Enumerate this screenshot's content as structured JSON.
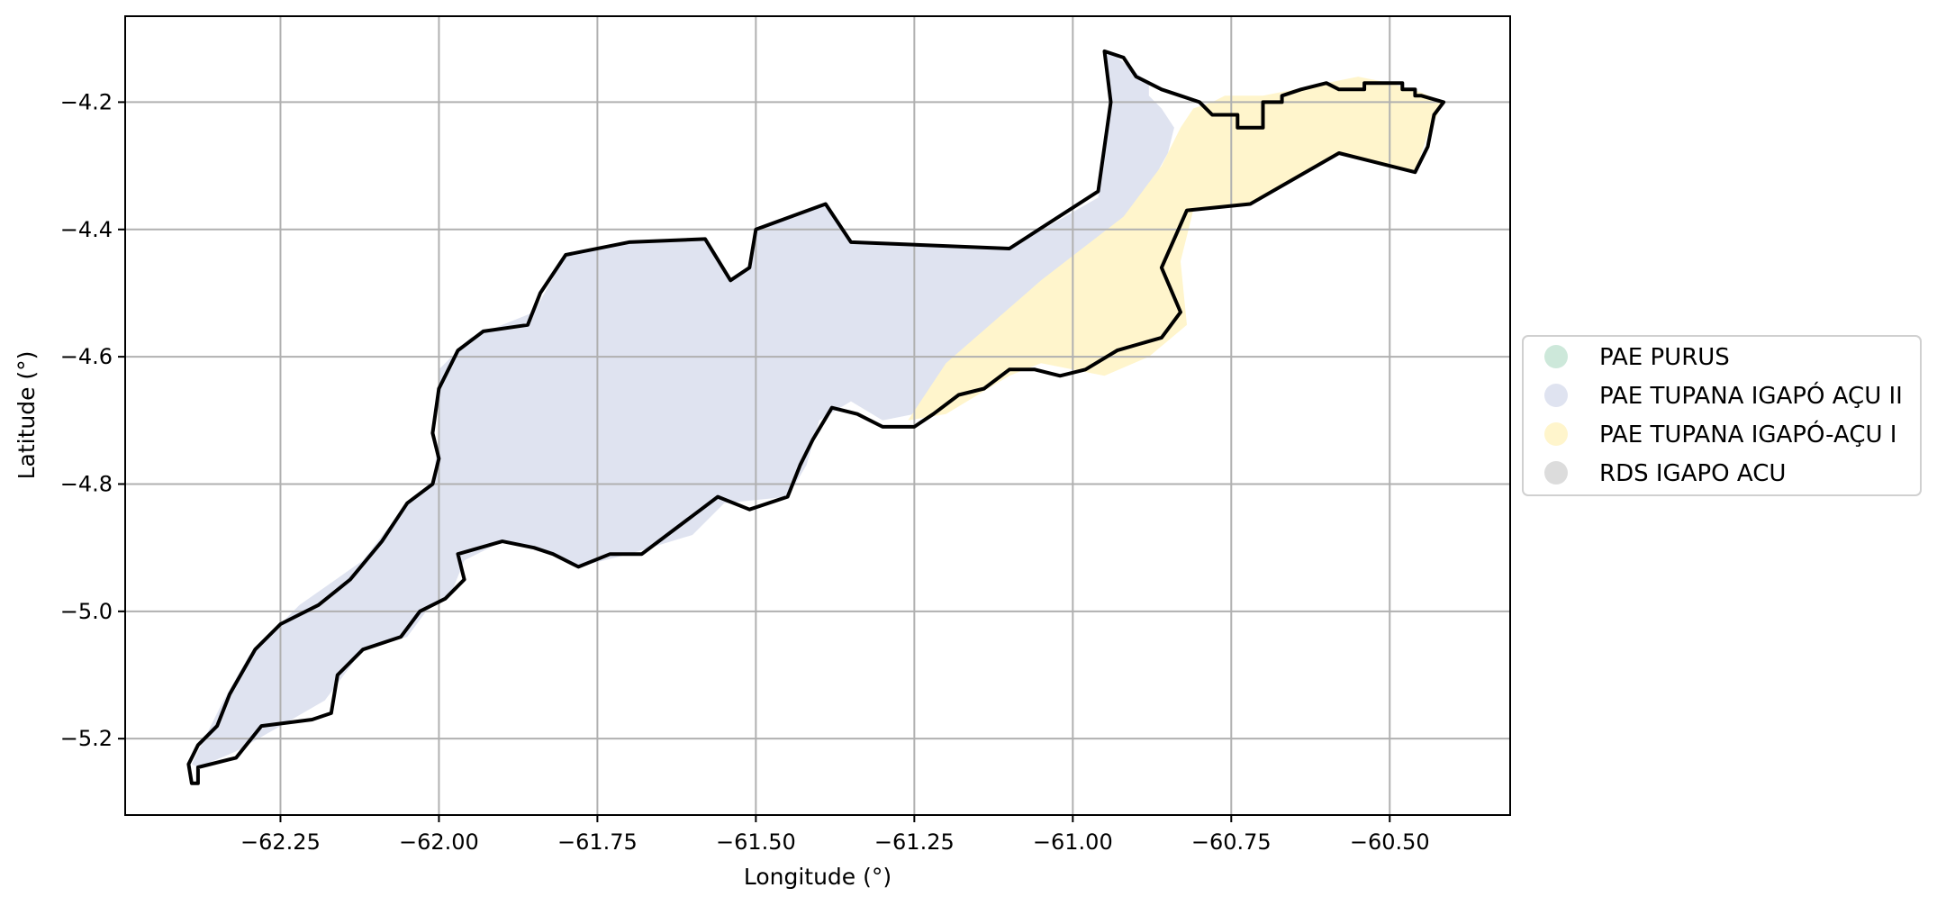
{
  "figure": {
    "xlabel": "Longitude (°)",
    "ylabel": "Latitude (°)"
  },
  "axes": {
    "x_ticks": [
      {
        "value": -62.25,
        "label": "−62.25"
      },
      {
        "value": -62.0,
        "label": "−62.00"
      },
      {
        "value": -61.75,
        "label": "−61.75"
      },
      {
        "value": -61.5,
        "label": "−61.50"
      },
      {
        "value": -61.25,
        "label": "−61.25"
      },
      {
        "value": -61.0,
        "label": "−61.00"
      },
      {
        "value": -60.75,
        "label": "−60.75"
      },
      {
        "value": -60.5,
        "label": "−60.50"
      }
    ],
    "y_ticks": [
      {
        "value": -4.2,
        "label": "−4.2"
      },
      {
        "value": -4.4,
        "label": "−4.4"
      },
      {
        "value": -4.6,
        "label": "−4.6"
      },
      {
        "value": -4.8,
        "label": "−4.8"
      },
      {
        "value": -5.0,
        "label": "−5.0"
      },
      {
        "value": -5.2,
        "label": "−5.2"
      }
    ],
    "xlim": [
      -62.495,
      -60.31
    ],
    "ylim": [
      -5.32,
      -4.065
    ],
    "grid": true
  },
  "legend": {
    "placement": "center-right, outside axes",
    "entries": [
      {
        "label": "PAE PURUS",
        "color": "#cde8da"
      },
      {
        "label": "PAE TUPANA IGAPÓ AÇU II",
        "color": "#dfe3f0"
      },
      {
        "label": "PAE TUPANA IGAPÓ-AÇU I",
        "color": "#fff5cc"
      },
      {
        "label": "RDS IGAPO ACU",
        "color": "#dcdcdc"
      }
    ]
  },
  "map_data": {
    "type": "choropleth",
    "outline_color": "#000000",
    "regions": [
      {
        "name": "PAE TUPANA IGAPÓ AÇU II",
        "color": "#dfe3f0",
        "polygon": [
          [
            -62.38,
            -5.245
          ],
          [
            -62.32,
            -5.22
          ],
          [
            -62.25,
            -5.18
          ],
          [
            -62.18,
            -5.14
          ],
          [
            -62.12,
            -5.06
          ],
          [
            -62.05,
            -5.04
          ],
          [
            -62.02,
            -5.0
          ],
          [
            -61.98,
            -4.97
          ],
          [
            -61.96,
            -4.92
          ],
          [
            -61.9,
            -4.89
          ],
          [
            -61.85,
            -4.9
          ],
          [
            -61.78,
            -4.93
          ],
          [
            -61.7,
            -4.91
          ],
          [
            -61.6,
            -4.88
          ],
          [
            -61.55,
            -4.83
          ],
          [
            -61.45,
            -4.82
          ],
          [
            -61.42,
            -4.77
          ],
          [
            -61.4,
            -4.7
          ],
          [
            -61.35,
            -4.67
          ],
          [
            -61.3,
            -4.7
          ],
          [
            -61.25,
            -4.69
          ],
          [
            -61.2,
            -4.62
          ],
          [
            -61.1,
            -4.57
          ],
          [
            -60.98,
            -4.47
          ],
          [
            -60.9,
            -4.37
          ],
          [
            -60.85,
            -4.28
          ],
          [
            -60.84,
            -4.24
          ],
          [
            -60.86,
            -4.21
          ],
          [
            -60.88,
            -4.19
          ],
          [
            -60.88,
            -4.17
          ],
          [
            -60.93,
            -4.13
          ],
          [
            -60.95,
            -4.12
          ],
          [
            -60.94,
            -4.2
          ],
          [
            -60.96,
            -4.35
          ],
          [
            -61.1,
            -4.43
          ],
          [
            -61.35,
            -4.42
          ],
          [
            -61.39,
            -4.36
          ],
          [
            -61.5,
            -4.4
          ],
          [
            -61.51,
            -4.46
          ],
          [
            -61.54,
            -4.48
          ],
          [
            -61.58,
            -4.415
          ],
          [
            -61.7,
            -4.42
          ],
          [
            -61.8,
            -4.44
          ],
          [
            -61.85,
            -4.53
          ],
          [
            -61.95,
            -4.57
          ],
          [
            -62.0,
            -4.62
          ],
          [
            -62.0,
            -4.72
          ],
          [
            -62.01,
            -4.8
          ],
          [
            -62.05,
            -4.83
          ],
          [
            -62.12,
            -4.92
          ],
          [
            -62.22,
            -4.99
          ],
          [
            -62.3,
            -5.07
          ],
          [
            -62.34,
            -5.14
          ],
          [
            -62.39,
            -5.24
          ]
        ]
      },
      {
        "name": "PAE TUPANA IGAPÓ-AÇU I",
        "color": "#fff5cc",
        "polygon": [
          [
            -61.26,
            -4.7
          ],
          [
            -61.2,
            -4.61
          ],
          [
            -61.05,
            -4.48
          ],
          [
            -60.92,
            -4.38
          ],
          [
            -60.86,
            -4.3
          ],
          [
            -60.83,
            -4.24
          ],
          [
            -60.81,
            -4.21
          ],
          [
            -60.78,
            -4.2
          ],
          [
            -60.76,
            -4.19
          ],
          [
            -60.7,
            -4.19
          ],
          [
            -60.65,
            -4.18
          ],
          [
            -60.6,
            -4.17
          ],
          [
            -60.55,
            -4.16
          ],
          [
            -60.5,
            -4.17
          ],
          [
            -60.45,
            -4.185
          ],
          [
            -60.415,
            -4.2
          ],
          [
            -60.44,
            -4.25
          ],
          [
            -60.46,
            -4.31
          ],
          [
            -60.58,
            -4.28
          ],
          [
            -60.72,
            -4.36
          ],
          [
            -60.81,
            -4.37
          ],
          [
            -60.83,
            -4.45
          ],
          [
            -60.82,
            -4.55
          ],
          [
            -60.88,
            -4.6
          ],
          [
            -60.95,
            -4.63
          ],
          [
            -61.05,
            -4.61
          ],
          [
            -61.1,
            -4.63
          ],
          [
            -61.2,
            -4.69
          ]
        ]
      }
    ],
    "outline": [
      [
        -62.38,
        -5.27
      ],
      [
        -62.38,
        -5.245
      ],
      [
        -62.32,
        -5.23
      ],
      [
        -62.28,
        -5.18
      ],
      [
        -62.2,
        -5.17
      ],
      [
        -62.17,
        -5.16
      ],
      [
        -62.16,
        -5.1
      ],
      [
        -62.12,
        -5.06
      ],
      [
        -62.06,
        -5.04
      ],
      [
        -62.03,
        -5.0
      ],
      [
        -61.99,
        -4.98
      ],
      [
        -61.96,
        -4.95
      ],
      [
        -61.97,
        -4.91
      ],
      [
        -61.9,
        -4.89
      ],
      [
        -61.85,
        -4.9
      ],
      [
        -61.82,
        -4.91
      ],
      [
        -61.78,
        -4.93
      ],
      [
        -61.73,
        -4.91
      ],
      [
        -61.68,
        -4.91
      ],
      [
        -61.64,
        -4.88
      ],
      [
        -61.6,
        -4.85
      ],
      [
        -61.56,
        -4.82
      ],
      [
        -61.51,
        -4.84
      ],
      [
        -61.45,
        -4.82
      ],
      [
        -61.43,
        -4.77
      ],
      [
        -61.41,
        -4.73
      ],
      [
        -61.38,
        -4.68
      ],
      [
        -61.34,
        -4.69
      ],
      [
        -61.3,
        -4.71
      ],
      [
        -61.25,
        -4.71
      ],
      [
        -61.22,
        -4.69
      ],
      [
        -61.18,
        -4.66
      ],
      [
        -61.14,
        -4.65
      ],
      [
        -61.1,
        -4.62
      ],
      [
        -61.06,
        -4.62
      ],
      [
        -61.02,
        -4.63
      ],
      [
        -60.98,
        -4.62
      ],
      [
        -60.93,
        -4.59
      ],
      [
        -60.86,
        -4.57
      ],
      [
        -60.83,
        -4.53
      ],
      [
        -60.86,
        -4.46
      ],
      [
        -60.82,
        -4.37
      ],
      [
        -60.72,
        -4.36
      ],
      [
        -60.58,
        -4.28
      ],
      [
        -60.46,
        -4.31
      ],
      [
        -60.44,
        -4.27
      ],
      [
        -60.43,
        -4.22
      ],
      [
        -60.415,
        -4.2
      ],
      [
        -60.45,
        -4.19
      ],
      [
        -60.46,
        -4.19
      ],
      [
        -60.46,
        -4.18
      ],
      [
        -60.48,
        -4.18
      ],
      [
        -60.48,
        -4.17
      ],
      [
        -60.54,
        -4.17
      ],
      [
        -60.54,
        -4.18
      ],
      [
        -60.58,
        -4.18
      ],
      [
        -60.6,
        -4.17
      ],
      [
        -60.64,
        -4.18
      ],
      [
        -60.67,
        -4.19
      ],
      [
        -60.67,
        -4.2
      ],
      [
        -60.7,
        -4.2
      ],
      [
        -60.7,
        -4.24
      ],
      [
        -60.74,
        -4.24
      ],
      [
        -60.74,
        -4.22
      ],
      [
        -60.78,
        -4.22
      ],
      [
        -60.8,
        -4.2
      ],
      [
        -60.83,
        -4.19
      ],
      [
        -60.86,
        -4.18
      ],
      [
        -60.9,
        -4.16
      ],
      [
        -60.92,
        -4.13
      ],
      [
        -60.95,
        -4.12
      ],
      [
        -60.94,
        -4.2
      ],
      [
        -60.96,
        -4.34
      ],
      [
        -61.1,
        -4.43
      ],
      [
        -61.35,
        -4.42
      ],
      [
        -61.39,
        -4.36
      ],
      [
        -61.5,
        -4.4
      ],
      [
        -61.51,
        -4.46
      ],
      [
        -61.54,
        -4.48
      ],
      [
        -61.58,
        -4.415
      ],
      [
        -61.7,
        -4.42
      ],
      [
        -61.8,
        -4.44
      ],
      [
        -61.84,
        -4.5
      ],
      [
        -61.86,
        -4.55
      ],
      [
        -61.93,
        -4.56
      ],
      [
        -61.97,
        -4.59
      ],
      [
        -62.0,
        -4.65
      ],
      [
        -62.01,
        -4.72
      ],
      [
        -62.0,
        -4.76
      ],
      [
        -62.01,
        -4.8
      ],
      [
        -62.05,
        -4.83
      ],
      [
        -62.09,
        -4.89
      ],
      [
        -62.14,
        -4.95
      ],
      [
        -62.19,
        -4.99
      ],
      [
        -62.25,
        -5.02
      ],
      [
        -62.29,
        -5.06
      ],
      [
        -62.33,
        -5.13
      ],
      [
        -62.35,
        -5.18
      ],
      [
        -62.38,
        -5.21
      ],
      [
        -62.395,
        -5.24
      ],
      [
        -62.39,
        -5.27
      ],
      [
        -62.38,
        -5.27
      ]
    ]
  }
}
